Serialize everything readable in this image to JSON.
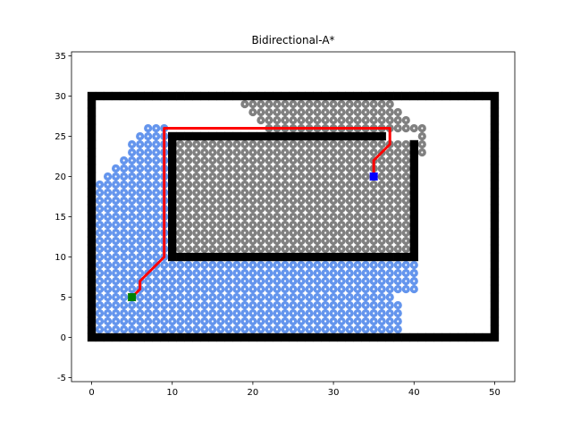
{
  "chart_data": {
    "type": "scatter",
    "title": "Bidirectional-A*",
    "xlabel": "",
    "ylabel": "",
    "xlim": [
      -2.5,
      52.5
    ],
    "ylim": [
      -5.5,
      35.5
    ],
    "x_ticks": [
      0,
      10,
      20,
      30,
      40,
      50
    ],
    "y_ticks": [
      -5,
      0,
      5,
      10,
      15,
      20,
      25,
      30,
      35
    ],
    "grid": false,
    "legend": "none",
    "colors": {
      "forward_explored": "#6495ed",
      "backward_explored": "#808080",
      "obstacle": "#000000",
      "path": "#ff0000",
      "start": "#008000",
      "goal": "#0000ff"
    },
    "start": [
      5,
      5
    ],
    "goal": [
      35,
      20
    ],
    "obstacles": {
      "boundary": {
        "x_min": 0,
        "x_max": 50,
        "y_min": 0,
        "y_max": 30
      },
      "inner_wall_horizontal": {
        "x_min": 10,
        "x_max": 40,
        "y": 10
      },
      "inner_wall_vertical_left": {
        "x": 10,
        "y_min": 10,
        "y_max": 25
      },
      "inner_wall_horizontal_top": {
        "x_min": 10,
        "x_max": 36,
        "y": 25
      },
      "inner_wall_vertical_right": {
        "x": 40,
        "y_min": 10,
        "y_max": 24
      }
    },
    "path": [
      [
        5,
        5
      ],
      [
        6,
        6
      ],
      [
        6,
        7
      ],
      [
        7,
        8
      ],
      [
        8,
        9
      ],
      [
        9,
        10
      ],
      [
        9,
        11
      ],
      [
        9,
        15
      ],
      [
        9,
        20
      ],
      [
        9,
        25
      ],
      [
        9,
        26
      ],
      [
        12,
        26
      ],
      [
        15,
        26
      ],
      [
        18,
        26
      ],
      [
        21,
        26
      ],
      [
        25,
        26
      ],
      [
        30,
        26
      ],
      [
        35,
        26
      ],
      [
        37,
        26
      ],
      [
        37,
        25
      ],
      [
        37,
        24
      ],
      [
        36,
        23
      ],
      [
        35,
        22
      ],
      [
        35,
        21
      ],
      [
        35,
        20
      ]
    ]
  }
}
